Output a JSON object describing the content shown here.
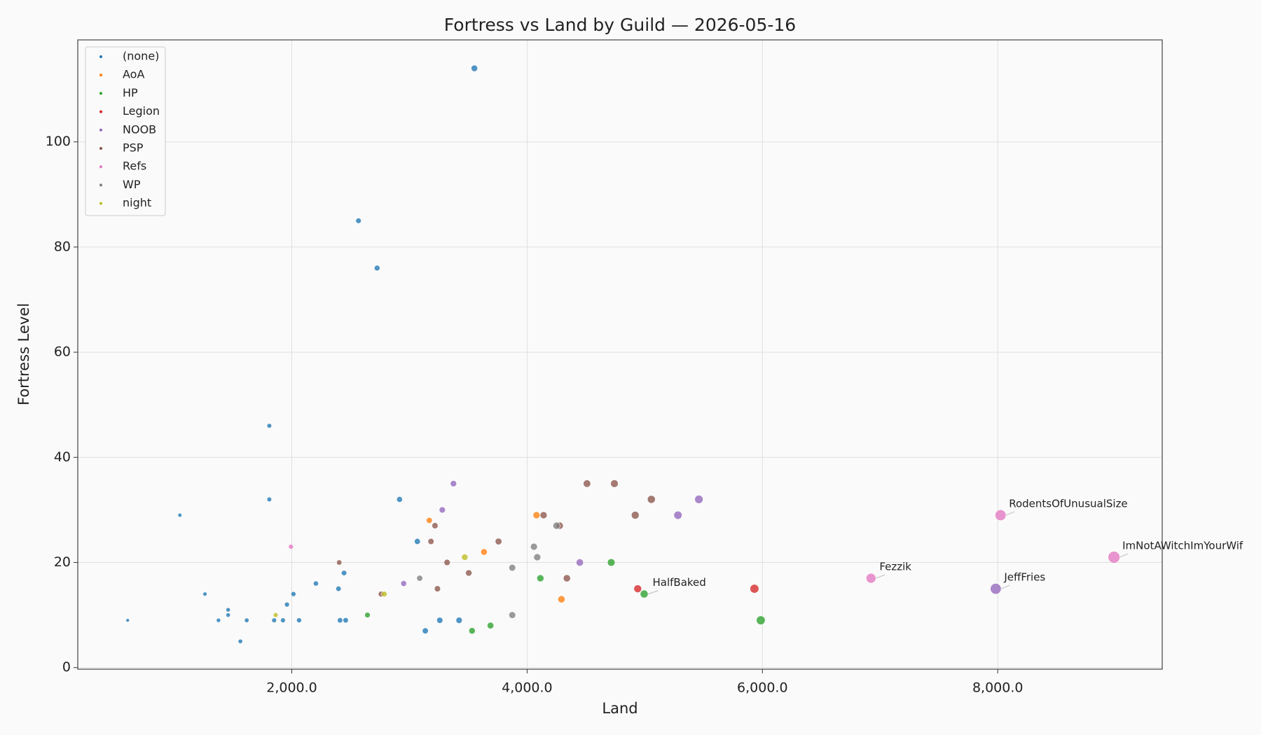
{
  "chart_data": {
    "type": "scatter",
    "title": "Fortress vs Land by Guild — 2026-05-16",
    "x_label": "Land",
    "y_label": "Fortress Level",
    "xlim": [
      181,
      9398
    ],
    "ylim": [
      -0.3,
      119.4
    ],
    "xticks": [
      {
        "value": 2000,
        "label": "2,000.0"
      },
      {
        "value": 4000,
        "label": "4,000.0"
      },
      {
        "value": 6000,
        "label": "6,000.0"
      },
      {
        "value": 8000,
        "label": "8,000.0"
      }
    ],
    "yticks": [
      0,
      20,
      40,
      60,
      80,
      100
    ],
    "grid": true,
    "legend": "upper left",
    "series": [
      {
        "name": "(none)",
        "color": "#1f77b4",
        "x": [
          605,
          1049,
          1262,
          1377,
          1459,
          1459,
          1563,
          1617,
          1809,
          1809,
          1850,
          1925,
          1959,
          2014,
          2062,
          2205,
          2397,
          2410,
          2444,
          2458,
          2567,
          2725,
          2916,
          3067,
          3135,
          3258,
          3422,
          3552
        ],
        "values": [
          9,
          29,
          14,
          9,
          11,
          10,
          5,
          9,
          46,
          32,
          9,
          9,
          12,
          14,
          9,
          16,
          15,
          9,
          18,
          9,
          85,
          76,
          32,
          24,
          7,
          9,
          9,
          114
        ]
      },
      {
        "name": "AoA",
        "color": "#ff7f0e",
        "x": [
          3169,
          3634,
          4080,
          4292
        ],
        "values": [
          28,
          22,
          29,
          13
        ]
      },
      {
        "name": "HP",
        "color": "#2ca02c",
        "x": [
          2643,
          3532,
          3689,
          4113,
          4715,
          4995,
          5986
        ],
        "values": [
          10,
          7,
          8,
          17,
          20,
          14,
          9
        ]
      },
      {
        "name": "Legion",
        "color": "#d62728",
        "x": [
          4940,
          5932
        ],
        "values": [
          15,
          15
        ]
      },
      {
        "name": "NOOB",
        "color": "#9467bd",
        "x": [
          2951,
          3279,
          3374,
          4448,
          5282,
          5460,
          7983
        ],
        "values": [
          16,
          30,
          35,
          20,
          29,
          32,
          15
        ]
      },
      {
        "name": "PSP",
        "color": "#8c564b",
        "x": [
          2403,
          2759,
          3183,
          3217,
          3238,
          3320,
          3504,
          3757,
          4140,
          4277,
          4338,
          4509,
          4742,
          4919,
          5056
        ],
        "values": [
          20,
          14,
          24,
          27,
          15,
          20,
          18,
          24,
          29,
          27,
          17,
          35,
          35,
          29,
          32
        ]
      },
      {
        "name": "Refs",
        "color": "#e377c2",
        "x": [
          1993,
          6923,
          8024,
          8988
        ],
        "values": [
          23,
          17,
          29,
          21
        ]
      },
      {
        "name": "WP",
        "color": "#7f7f7f",
        "x": [
          3087,
          3874,
          3874,
          4058,
          4086,
          4250
        ],
        "values": [
          17,
          10,
          19,
          23,
          21,
          27
        ]
      },
      {
        "name": "night",
        "color": "#bcbd22",
        "x": [
          1863,
          2786,
          3470
        ],
        "values": [
          10,
          14,
          21
        ]
      }
    ],
    "annotations": [
      {
        "text": "RodentsOfUnusualSize",
        "x": 8024,
        "y": 29
      },
      {
        "text": "ImNotAWitchImYourWif",
        "x": 8988,
        "y": 21
      },
      {
        "text": "Fezzik",
        "x": 6923,
        "y": 17
      },
      {
        "text": "JeffFries",
        "x": 7983,
        "y": 15
      },
      {
        "text": "HalfBaked",
        "x": 4995,
        "y": 14
      }
    ]
  }
}
